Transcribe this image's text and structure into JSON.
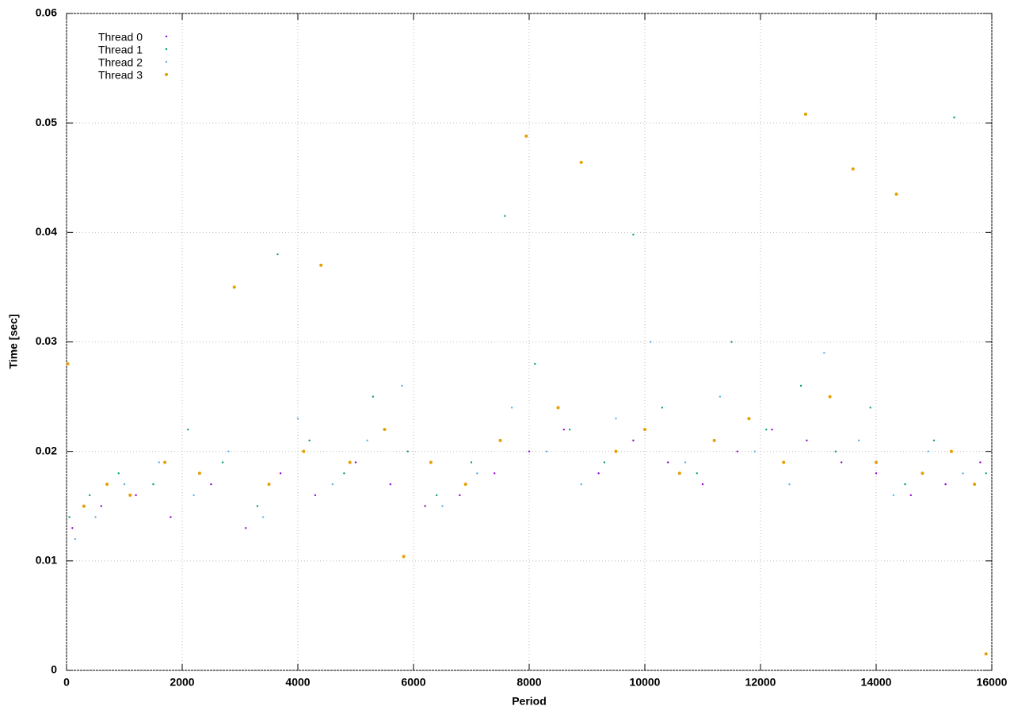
{
  "chart_data": {
    "type": "scatter",
    "x_label": "Period",
    "y_label": "Time [sec]",
    "xlim": [
      0,
      16000
    ],
    "ylim": [
      0,
      0.06
    ],
    "xticks": [
      0,
      2000,
      4000,
      6000,
      8000,
      10000,
      12000,
      14000,
      16000
    ],
    "yticks": [
      0,
      0.01,
      0.02,
      0.03,
      0.04,
      0.05,
      0.06
    ],
    "grid": true,
    "legend": "upper left",
    "series": [
      {
        "name": "Thread 0",
        "color": "#9400d3",
        "x": [
          100,
          600,
          1200,
          1800,
          2500,
          3100,
          3700,
          4300,
          5000,
          5600,
          6200,
          6800,
          7400,
          8000,
          8600,
          9200,
          9800,
          10400,
          11000,
          11600,
          12200,
          12800,
          13400,
          14000,
          14600,
          15200,
          15800
        ],
        "values": [
          0.013,
          0.015,
          0.016,
          0.014,
          0.017,
          0.013,
          0.018,
          0.016,
          0.019,
          0.017,
          0.015,
          0.016,
          0.018,
          0.02,
          0.022,
          0.018,
          0.021,
          0.019,
          0.017,
          0.02,
          0.022,
          0.021,
          0.019,
          0.018,
          0.016,
          0.017,
          0.019
        ]
      },
      {
        "name": "Thread 1",
        "color": "#009e73",
        "x": [
          50,
          400,
          900,
          1500,
          2100,
          2700,
          3300,
          3650,
          4200,
          4800,
          5300,
          5900,
          6400,
          7000,
          7580,
          8100,
          8700,
          9300,
          9800,
          10300,
          10900,
          11500,
          12100,
          12700,
          13300,
          13900,
          14500,
          15000,
          15350,
          15900
        ],
        "values": [
          0.014,
          0.016,
          0.018,
          0.017,
          0.022,
          0.019,
          0.015,
          0.038,
          0.021,
          0.018,
          0.025,
          0.02,
          0.016,
          0.019,
          0.0415,
          0.028,
          0.022,
          0.019,
          0.0398,
          0.024,
          0.018,
          0.03,
          0.022,
          0.026,
          0.02,
          0.024,
          0.017,
          0.021,
          0.0505,
          0.018
        ]
      },
      {
        "name": "Thread 2",
        "color": "#56b4e9",
        "x": [
          150,
          500,
          1000,
          1600,
          2200,
          2800,
          3400,
          4000,
          4600,
          5200,
          5800,
          6500,
          7100,
          7700,
          8300,
          8900,
          9500,
          10100,
          10700,
          11300,
          11900,
          12500,
          13100,
          13700,
          14300,
          14900,
          15500
        ],
        "values": [
          0.012,
          0.014,
          0.017,
          0.019,
          0.016,
          0.02,
          0.014,
          0.023,
          0.017,
          0.021,
          0.026,
          0.015,
          0.018,
          0.024,
          0.02,
          0.017,
          0.023,
          0.03,
          0.019,
          0.025,
          0.02,
          0.017,
          0.029,
          0.021,
          0.016,
          0.02,
          0.018
        ]
      },
      {
        "name": "Thread 3",
        "color": "#e69f00",
        "x": [
          20,
          300,
          700,
          1100,
          1700,
          2300,
          2900,
          3500,
          4100,
          4400,
          4900,
          5500,
          5830,
          6300,
          6900,
          7500,
          7950,
          8500,
          8900,
          9500,
          10000,
          10600,
          11200,
          11800,
          12400,
          12780,
          13200,
          13600,
          14000,
          14350,
          14800,
          15300,
          15700,
          15900
        ],
        "values": [
          0.028,
          0.015,
          0.017,
          0.016,
          0.019,
          0.018,
          0.035,
          0.017,
          0.02,
          0.037,
          0.019,
          0.022,
          0.0104,
          0.019,
          0.017,
          0.021,
          0.0488,
          0.024,
          0.0464,
          0.02,
          0.022,
          0.018,
          0.021,
          0.023,
          0.019,
          0.0508,
          0.025,
          0.0458,
          0.019,
          0.0435,
          0.018,
          0.02,
          0.017,
          0.0015
        ]
      }
    ]
  }
}
